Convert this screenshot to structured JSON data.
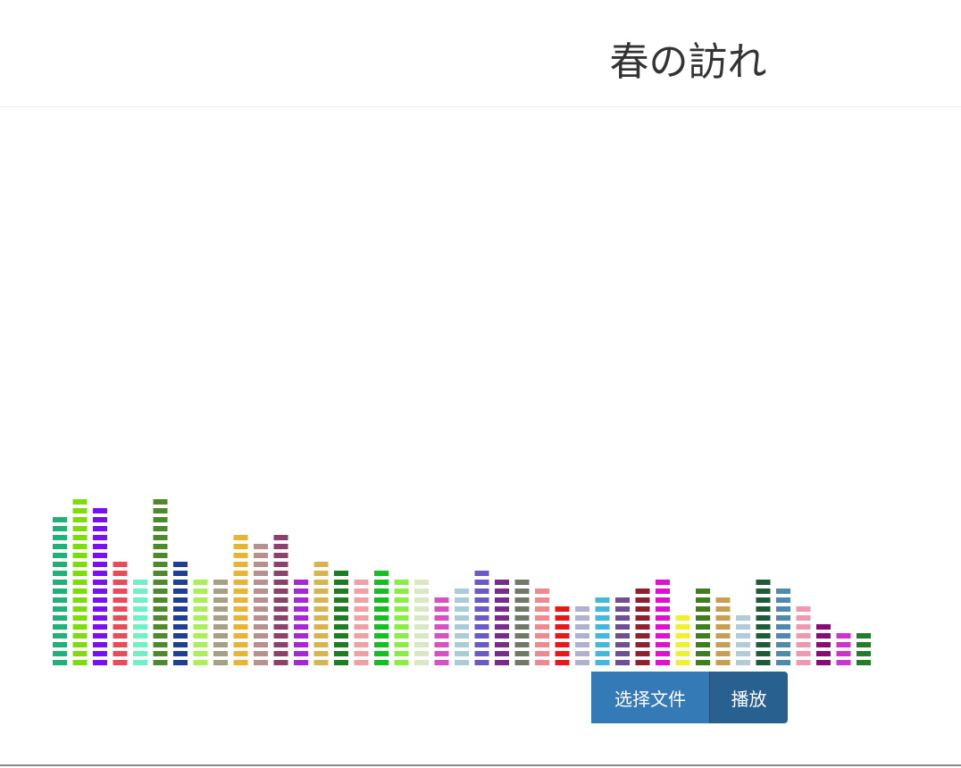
{
  "header": {
    "title": "春の訪れ"
  },
  "controls": {
    "file_label": "选择文件",
    "play_label": "播放"
  },
  "visualizer": {
    "segments_max": 19,
    "bars": [
      {
        "level": 17,
        "color": "#20b07a"
      },
      {
        "level": 19,
        "color": "#7ddd0a"
      },
      {
        "level": 18,
        "color": "#7a10f0"
      },
      {
        "level": 12,
        "color": "#e84c57"
      },
      {
        "level": 10,
        "color": "#6ef2c4"
      },
      {
        "level": 19,
        "color": "#4e8a2c"
      },
      {
        "level": 12,
        "color": "#1e3f96"
      },
      {
        "level": 10,
        "color": "#a9f058"
      },
      {
        "level": 10,
        "color": "#a8a084"
      },
      {
        "level": 15,
        "color": "#e8b434"
      },
      {
        "level": 14,
        "color": "#b89090"
      },
      {
        "level": 15,
        "color": "#8c406a"
      },
      {
        "level": 10,
        "color": "#a826d8"
      },
      {
        "level": 12,
        "color": "#d8b450"
      },
      {
        "level": 11,
        "color": "#1c7e1e"
      },
      {
        "level": 10,
        "color": "#f0a0a4"
      },
      {
        "level": 11,
        "color": "#14c020"
      },
      {
        "level": 10,
        "color": "#88ee44"
      },
      {
        "level": 10,
        "color": "#d8e8c4"
      },
      {
        "level": 8,
        "color": "#d850c4"
      },
      {
        "level": 9,
        "color": "#a8ccd8"
      },
      {
        "level": 11,
        "color": "#6a5ac8"
      },
      {
        "level": 10,
        "color": "#7a2a8a"
      },
      {
        "level": 10,
        "color": "#707868"
      },
      {
        "level": 9,
        "color": "#f08890"
      },
      {
        "level": 7,
        "color": "#e81818"
      },
      {
        "level": 7,
        "color": "#b0b0d0"
      },
      {
        "level": 8,
        "color": "#44b8dc"
      },
      {
        "level": 8,
        "color": "#6e4e96"
      },
      {
        "level": 9,
        "color": "#8e2030"
      },
      {
        "level": 10,
        "color": "#e010d0"
      },
      {
        "level": 6,
        "color": "#f0f030"
      },
      {
        "level": 9,
        "color": "#3e7e1e"
      },
      {
        "level": 8,
        "color": "#c89e54"
      },
      {
        "level": 6,
        "color": "#b0ccd8"
      },
      {
        "level": 10,
        "color": "#1c5c38"
      },
      {
        "level": 9,
        "color": "#4e8aae"
      },
      {
        "level": 7,
        "color": "#f098b0"
      },
      {
        "level": 5,
        "color": "#8a0a78"
      },
      {
        "level": 4,
        "color": "#d030d0"
      },
      {
        "level": 4,
        "color": "#207e28"
      }
    ]
  }
}
